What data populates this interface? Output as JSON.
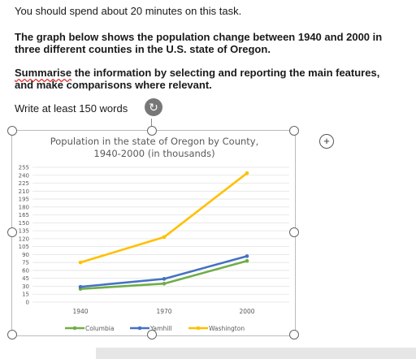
{
  "task": {
    "instruction": "You should spend about 20 minutes on this task.",
    "prompt_line1": "The graph below shows the population change between 1940 and 2000 in",
    "prompt_line2": "three different counties in the U.S. state of Oregon.",
    "summary_word": "Summarise",
    "summary_rest1": " the information by selecting and reporting the main features,",
    "summary_line2": "and make comparisons where relevant.",
    "word_count": "Write at least 150 words"
  },
  "icons": {
    "refresh": "refresh-icon",
    "add": "plus-icon"
  },
  "chart_data": {
    "type": "line",
    "title_line1": "Population in the state of Oregon by County,",
    "title_line2": "1940-2000 (in thousands)",
    "categories": [
      "1940",
      "1970",
      "2000"
    ],
    "y_ticks": [
      0,
      15,
      30,
      45,
      60,
      75,
      90,
      105,
      120,
      135,
      150,
      165,
      180,
      195,
      210,
      225,
      240,
      255
    ],
    "ylim": [
      0,
      255
    ],
    "grid": true,
    "legend_position": "bottom",
    "series": [
      {
        "name": "Columbia",
        "values": [
          25,
          35,
          78
        ],
        "color": "#70ad47"
      },
      {
        "name": "Yamhill",
        "values": [
          29,
          44,
          87
        ],
        "color": "#4472c4"
      },
      {
        "name": "Washington",
        "values": [
          75,
          123,
          244
        ],
        "color": "#ffc000"
      }
    ]
  }
}
